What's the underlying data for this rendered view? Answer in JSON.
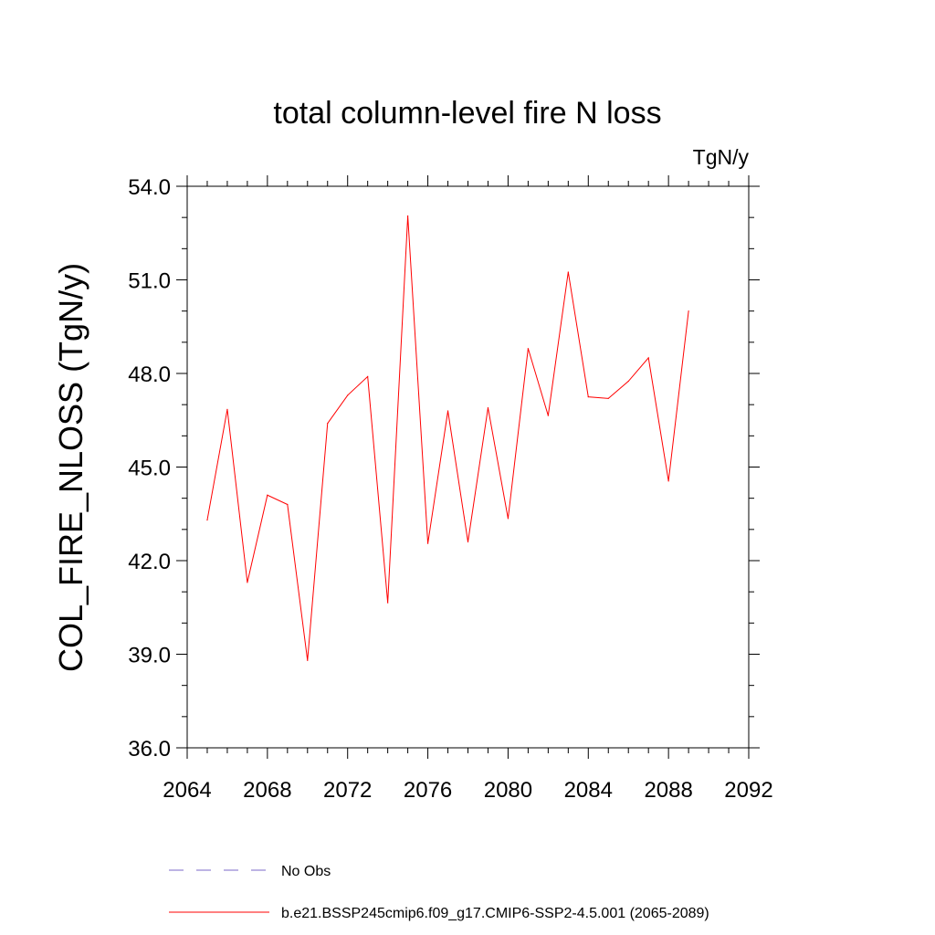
{
  "chart_data": {
    "type": "line",
    "title": "total column-level fire N loss",
    "units": "TgN/y",
    "ylabel": "COL_FIRE_NLOSS  (TgN/y)",
    "xlabel": "",
    "xlim": [
      2064,
      2092
    ],
    "ylim": [
      36.0,
      54.0
    ],
    "x_ticks": [
      2064,
      2068,
      2072,
      2076,
      2080,
      2084,
      2088,
      2092
    ],
    "x_tick_labels": [
      "2064",
      "2068",
      "2072",
      "2076",
      "2080",
      "2084",
      "2088",
      "2092"
    ],
    "y_ticks": [
      36.0,
      39.0,
      42.0,
      45.0,
      48.0,
      51.0,
      54.0
    ],
    "y_tick_labels": [
      "36.0",
      "39.0",
      "42.0",
      "45.0",
      "48.0",
      "51.0",
      "54.0"
    ],
    "grid": false,
    "legend_position": "bottom",
    "x": [
      2065,
      2066,
      2067,
      2068,
      2069,
      2070,
      2071,
      2072,
      2073,
      2074,
      2075,
      2076,
      2077,
      2078,
      2079,
      2080,
      2081,
      2082,
      2083,
      2084,
      2085,
      2086,
      2087,
      2088,
      2089
    ],
    "series": [
      {
        "name": "b.e21.BSSP245cmip6.f09_g17.CMIP6-SSP2-4.5.001 (2065-2089)",
        "color": "#ff0000",
        "dash": "solid",
        "values": [
          43.3,
          46.85,
          41.3,
          44.1,
          43.8,
          38.8,
          46.4,
          47.3,
          47.9,
          40.65,
          53.05,
          42.55,
          46.8,
          42.6,
          46.9,
          43.35,
          48.8,
          46.65,
          51.25,
          47.25,
          47.2,
          47.75,
          48.5,
          44.55,
          50.0
        ]
      }
    ],
    "legend": [
      {
        "label": "No Obs",
        "color": "#7b68c8",
        "dash": "dashed"
      },
      {
        "label": "b.e21.BSSP245cmip6.f09_g17.CMIP6-SSP2-4.5.001 (2065-2089)",
        "color": "#ff0000",
        "dash": "solid"
      }
    ]
  }
}
